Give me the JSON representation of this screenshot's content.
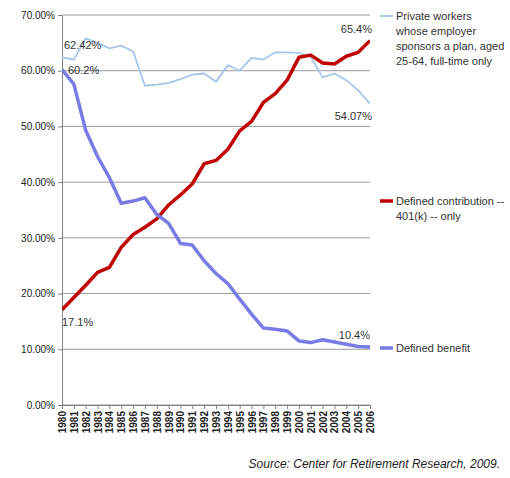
{
  "chart_data": {
    "type": "line",
    "source": "Source: Center for Retirement Research, 2009.",
    "categories": [
      "1980",
      "1981",
      "1982",
      "1983",
      "1984",
      "1985",
      "1986",
      "1987",
      "1988",
      "1989",
      "1990",
      "1991",
      "1992",
      "1993",
      "1994",
      "1995",
      "1996",
      "1997",
      "1998",
      "1999",
      "2000",
      "2001",
      "2002",
      "2003",
      "2004",
      "2005",
      "2006"
    ],
    "ylim": [
      0,
      70
    ],
    "yticks": [
      {
        "value": 0,
        "label": "0.00%"
      },
      {
        "value": 10,
        "label": "10.00%"
      },
      {
        "value": 20,
        "label": "20.00%"
      },
      {
        "value": 30,
        "label": "30.00%"
      },
      {
        "value": 40,
        "label": "40.00%"
      },
      {
        "value": 50,
        "label": "50.00%"
      },
      {
        "value": 60,
        "label": "60.00%"
      },
      {
        "value": 70,
        "label": "70.00%"
      }
    ],
    "grid": true,
    "legend": "right",
    "data_labels": true,
    "series": [
      {
        "name": "Private workers whose employer sponsors a plan, aged 25-64, full-time only",
        "color": "#a9c6ea",
        "values": [
          62.42,
          62.0,
          65.8,
          65.0,
          64.0,
          64.5,
          63.5,
          57.3,
          57.5,
          57.8,
          58.5,
          59.3,
          59.5,
          58.0,
          61.0,
          60.0,
          62.3,
          62.0,
          63.3,
          63.3,
          63.2,
          62.5,
          58.8,
          59.5,
          58.3,
          56.5,
          54.07
        ],
        "value_labels": [
          "62.42%",
          null,
          null,
          null,
          null,
          null,
          null,
          null,
          null,
          null,
          null,
          null,
          null,
          null,
          null,
          null,
          null,
          null,
          null,
          null,
          null,
          null,
          null,
          null,
          null,
          null,
          "54.07%"
        ]
      },
      {
        "name": "Defined contribution -- 401(k) -- only",
        "color": "#c00000",
        "values": [
          17.1,
          19.3,
          21.5,
          23.8,
          24.7,
          28.3,
          30.6,
          31.9,
          33.4,
          35.9,
          37.7,
          39.7,
          43.3,
          43.9,
          45.9,
          49.2,
          50.9,
          54.3,
          55.9,
          58.3,
          62.4,
          62.8,
          61.4,
          61.2,
          62.6,
          63.3,
          65.4
        ],
        "value_labels": [
          "17.1%",
          null,
          null,
          null,
          null,
          null,
          null,
          null,
          null,
          null,
          null,
          null,
          null,
          null,
          null,
          null,
          null,
          null,
          null,
          null,
          null,
          null,
          null,
          null,
          null,
          null,
          "65.4%"
        ]
      },
      {
        "name": "Defined benefit",
        "color": "#7b7be6",
        "values": [
          60.2,
          57.6,
          49.3,
          44.6,
          40.8,
          36.2,
          36.6,
          37.2,
          34.2,
          32.6,
          29.0,
          28.7,
          25.9,
          23.6,
          21.8,
          19.0,
          16.3,
          13.8,
          13.6,
          13.3,
          11.5,
          11.2,
          11.7,
          11.3,
          10.9,
          10.5,
          10.4
        ],
        "value_labels": [
          "60.2%",
          null,
          null,
          null,
          null,
          null,
          null,
          null,
          null,
          null,
          null,
          null,
          null,
          null,
          null,
          null,
          null,
          null,
          null,
          null,
          null,
          null,
          null,
          null,
          null,
          null,
          "10.4%"
        ]
      }
    ]
  }
}
